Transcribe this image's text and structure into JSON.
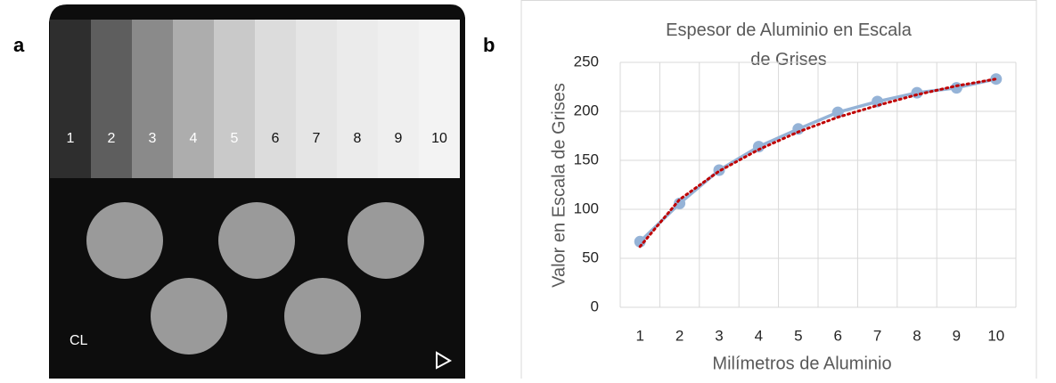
{
  "panel_labels": [
    "a",
    "b"
  ],
  "radiograph": {
    "steps": [
      "1",
      "2",
      "3",
      "4",
      "5",
      "6",
      "7",
      "8",
      "9",
      "10"
    ],
    "label": "CL"
  },
  "chart_data": {
    "type": "line",
    "title": "Espesor de Aluminio en Escala de Grises",
    "x_label": "Milímetros de Aluminio",
    "y_label": "Valor en Escala de Grises",
    "categories": [
      "1",
      "2",
      "3",
      "4",
      "5",
      "6",
      "7",
      "8",
      "9",
      "10"
    ],
    "series": [
      {
        "color": "#95b3d7",
        "values": [
          67,
          106,
          140,
          164,
          182,
          199,
          210,
          219,
          224,
          233
        ]
      },
      {
        "color": "#c00000",
        "dashed": true,
        "values": [
          62,
          110,
          139,
          161,
          179,
          194,
          206,
          217,
          226,
          233
        ]
      }
    ],
    "ylim": [
      0,
      250
    ],
    "yticks": [
      0,
      50,
      100,
      150,
      200,
      250
    ],
    "grid": true
  }
}
